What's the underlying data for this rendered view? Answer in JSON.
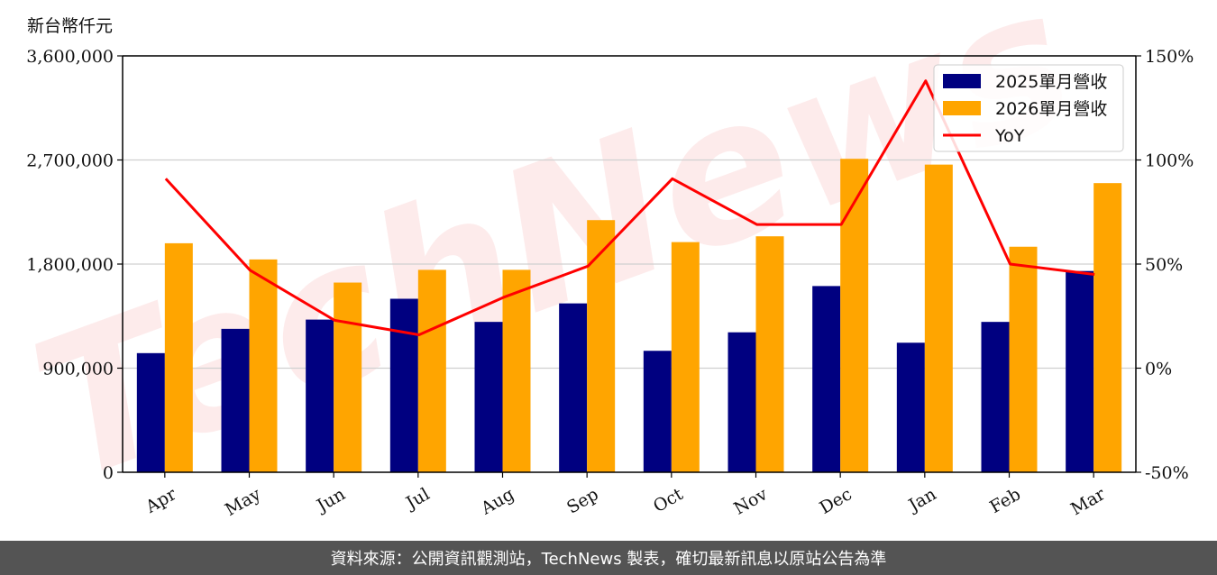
{
  "y_unit_label": "新台幣仟元",
  "footer_text": "資料來源：公開資訊觀測站，TechNews 製表，確切最新訊息以原站公告為準",
  "watermark": "TechNews",
  "colors": {
    "series_2025": "#000080",
    "series_2026": "#FFA500",
    "yoy": "#FF0000",
    "grid": "#d0d0d0",
    "footer_bg": "#545454"
  },
  "chart_data": {
    "type": "bar",
    "categories": [
      "Apr",
      "May",
      "Jun",
      "Jul",
      "Aug",
      "Sep",
      "Oct",
      "Nov",
      "Dec",
      "Jan",
      "Feb",
      "Mar"
    ],
    "series": [
      {
        "name": "2025單月營收",
        "values": [
          1030000,
          1240000,
          1320000,
          1500000,
          1300000,
          1460000,
          1050000,
          1210000,
          1610000,
          1120000,
          1300000,
          1740000
        ]
      },
      {
        "name": "2026單月營收",
        "values": [
          1980000,
          1840000,
          1640000,
          1750000,
          1750000,
          2180000,
          1990000,
          2040000,
          2710000,
          2660000,
          1950000,
          2500000
        ]
      }
    ],
    "line_series": {
      "name": "YoY",
      "values": [
        91,
        47,
        23,
        16,
        34,
        49,
        91,
        69,
        69,
        138,
        50,
        45
      ]
    },
    "ylim": [
      0,
      3600000
    ],
    "y_ticks": [
      "0",
      "900,000",
      "1,800,000",
      "2,700,000",
      "3,600,000"
    ],
    "y2lim": [
      -50,
      150
    ],
    "y2_ticks": [
      "-50%",
      "0%",
      "50%",
      "100%",
      "150%"
    ],
    "grid": "horizontal",
    "legend": "top-right"
  }
}
